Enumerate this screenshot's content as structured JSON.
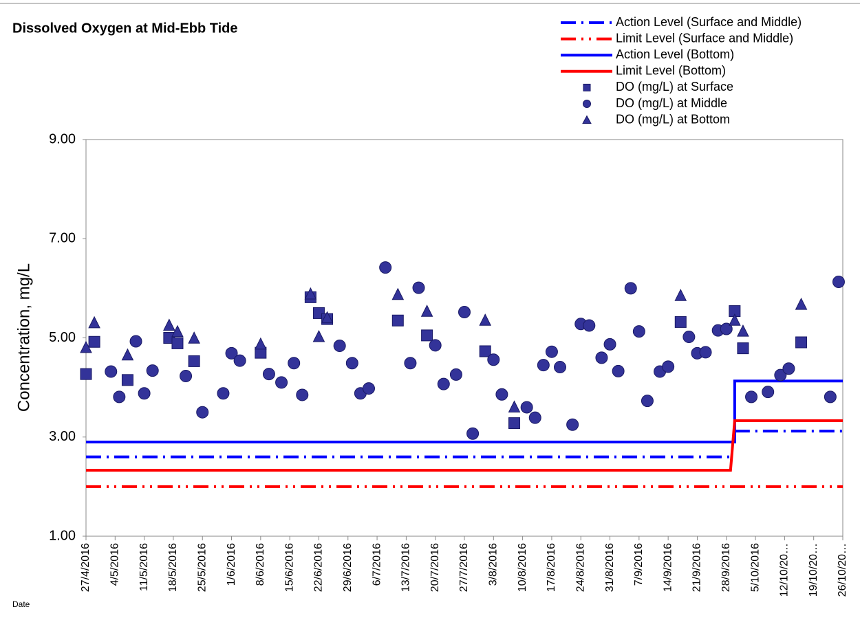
{
  "chart_data": {
    "type": "scatter",
    "title": "Dissolved Oxygen at Mid-Ebb Tide",
    "x_label": "Date",
    "y_label": "Concentration, mg/L",
    "xlim": [
      "2016-04-27",
      "2016-10-26"
    ],
    "xticks": [
      {
        "value": "2016-04-27",
        "label": "27/4/2016"
      },
      {
        "value": "2016-05-04",
        "label": "4/5/2016"
      },
      {
        "value": "2016-05-11",
        "label": "11/5/2016"
      },
      {
        "value": "2016-05-18",
        "label": "18/5/2016"
      },
      {
        "value": "2016-05-25",
        "label": "25/5/2016"
      },
      {
        "value": "2016-06-01",
        "label": "1/6/2016"
      },
      {
        "value": "2016-06-08",
        "label": "8/6/2016"
      },
      {
        "value": "2016-06-15",
        "label": "15/6/2016"
      },
      {
        "value": "2016-06-22",
        "label": "22/6/2016"
      },
      {
        "value": "2016-06-29",
        "label": "29/6/2016"
      },
      {
        "value": "2016-07-06",
        "label": "6/7/2016"
      },
      {
        "value": "2016-07-13",
        "label": "13/7/2016"
      },
      {
        "value": "2016-07-20",
        "label": "20/7/2016"
      },
      {
        "value": "2016-07-27",
        "label": "27/7/2016"
      },
      {
        "value": "2016-08-03",
        "label": "3/8/2016"
      },
      {
        "value": "2016-08-10",
        "label": "10/8/2016"
      },
      {
        "value": "2016-08-17",
        "label": "17/8/2016"
      },
      {
        "value": "2016-08-24",
        "label": "24/8/2016"
      },
      {
        "value": "2016-08-31",
        "label": "31/8/2016"
      },
      {
        "value": "2016-09-07",
        "label": "7/9/2016"
      },
      {
        "value": "2016-09-14",
        "label": "14/9/2016"
      },
      {
        "value": "2016-09-21",
        "label": "21/9/2016"
      },
      {
        "value": "2016-09-28",
        "label": "28/9/2016"
      },
      {
        "value": "2016-10-05",
        "label": "5/10/2016"
      },
      {
        "value": "2016-10-12",
        "label": "12/10/20…"
      },
      {
        "value": "2016-10-19",
        "label": "19/10/20…"
      },
      {
        "value": "2016-10-26",
        "label": "26/10/20…"
      }
    ],
    "ylim": [
      1,
      9
    ],
    "yticks": [
      {
        "value": 1,
        "label": "1.00"
      },
      {
        "value": 3,
        "label": "3.00"
      },
      {
        "value": 5,
        "label": "5.00"
      },
      {
        "value": 7,
        "label": "7.00"
      },
      {
        "value": 9,
        "label": "9.00"
      }
    ],
    "legend": "top-right",
    "series": [
      {
        "name": "Action Level (Surface and Middle)",
        "type": "line",
        "linestyle": "dash-dot",
        "color": "#0000ff",
        "x": [
          "2016-04-27",
          "2016-09-29",
          "2016-09-29",
          "2016-09-30",
          "2016-10-26"
        ],
        "values": [
          2.6,
          2.6,
          null,
          3.12,
          3.12
        ]
      },
      {
        "name": "Limit Level (Surface and Middle)",
        "type": "line",
        "linestyle": "dash-dot-dot",
        "color": "#ff0000",
        "x": [
          "2016-04-27",
          "2016-10-26"
        ],
        "values": [
          2.0,
          2.0
        ]
      },
      {
        "name": "Action Level (Bottom)",
        "type": "line",
        "linestyle": "solid",
        "color": "#0000ff",
        "x": [
          "2016-04-27",
          "2016-09-30",
          "2016-09-30",
          "2016-10-26"
        ],
        "values": [
          2.9,
          2.9,
          4.13,
          4.13
        ]
      },
      {
        "name": "Limit Level (Bottom)",
        "type": "line",
        "linestyle": "solid",
        "color": "#ff0000",
        "x": [
          "2016-04-27",
          "2016-09-29",
          "2016-09-30",
          "2016-10-26"
        ],
        "values": [
          2.33,
          2.33,
          3.33,
          3.33
        ]
      },
      {
        "name": "DO (mg/L) at Surface",
        "type": "scatter",
        "marker": "square",
        "color": "#333399",
        "x": [
          "2016-04-27",
          "2016-04-29",
          "2016-05-07",
          "2016-05-17",
          "2016-05-19",
          "2016-05-23",
          "2016-06-08",
          "2016-06-20",
          "2016-06-22",
          "2016-06-24",
          "2016-07-11",
          "2016-07-18",
          "2016-08-01",
          "2016-08-08",
          "2016-09-17",
          "2016-09-30",
          "2016-10-02",
          "2016-10-16"
        ],
        "values": [
          4.27,
          4.92,
          4.15,
          5.0,
          4.89,
          4.53,
          4.7,
          5.82,
          5.5,
          5.38,
          5.35,
          5.05,
          4.73,
          3.28,
          5.32,
          5.54,
          4.79,
          4.91
        ]
      },
      {
        "name": "DO (mg/L) at Middle",
        "type": "scatter",
        "marker": "circle",
        "color": "#333399",
        "x": [
          "2016-05-03",
          "2016-05-05",
          "2016-05-09",
          "2016-05-11",
          "2016-05-13",
          "2016-05-21",
          "2016-05-25",
          "2016-05-30",
          "2016-06-01",
          "2016-06-03",
          "2016-06-10",
          "2016-06-13",
          "2016-06-16",
          "2016-06-18",
          "2016-06-27",
          "2016-06-30",
          "2016-07-02",
          "2016-07-04",
          "2016-07-08",
          "2016-07-14",
          "2016-07-16",
          "2016-07-20",
          "2016-07-22",
          "2016-07-25",
          "2016-07-27",
          "2016-07-29",
          "2016-08-03",
          "2016-08-05",
          "2016-08-11",
          "2016-08-13",
          "2016-08-15",
          "2016-08-17",
          "2016-08-19",
          "2016-08-22",
          "2016-08-24",
          "2016-08-26",
          "2016-08-29",
          "2016-08-31",
          "2016-09-02",
          "2016-09-05",
          "2016-09-07",
          "2016-09-09",
          "2016-09-12",
          "2016-09-14",
          "2016-09-19",
          "2016-09-21",
          "2016-09-23",
          "2016-09-26",
          "2016-09-28",
          "2016-10-04",
          "2016-10-08",
          "2016-10-11",
          "2016-10-13",
          "2016-10-23",
          "2016-10-25"
        ],
        "values": [
          4.32,
          3.81,
          4.93,
          3.88,
          4.34,
          4.23,
          3.5,
          3.88,
          4.69,
          4.54,
          4.27,
          4.1,
          4.49,
          3.85,
          4.84,
          4.49,
          3.88,
          3.98,
          6.42,
          4.49,
          6.01,
          4.85,
          4.07,
          4.26,
          5.52,
          3.07,
          4.56,
          3.86,
          3.6,
          3.39,
          4.45,
          4.72,
          4.41,
          3.25,
          5.28,
          5.25,
          4.6,
          4.87,
          4.33,
          6.0,
          5.13,
          3.73,
          4.32,
          4.42,
          5.02,
          4.69,
          4.71,
          5.15,
          5.18,
          3.81,
          3.91,
          4.25,
          4.38,
          3.81,
          6.13
        ]
      },
      {
        "name": "DO (mg/L) at Bottom",
        "type": "scatter",
        "marker": "triangle",
        "color": "#333399",
        "x": [
          "2016-04-27",
          "2016-04-29",
          "2016-05-07",
          "2016-05-17",
          "2016-05-19",
          "2016-05-23",
          "2016-06-08",
          "2016-06-20",
          "2016-06-22",
          "2016-06-24",
          "2016-07-11",
          "2016-07-18",
          "2016-08-01",
          "2016-08-08",
          "2016-09-17",
          "2016-09-30",
          "2016-10-02",
          "2016-10-16"
        ],
        "values": [
          4.8,
          5.3,
          4.65,
          5.25,
          5.12,
          4.99,
          4.87,
          5.88,
          5.02,
          5.4,
          5.87,
          5.53,
          5.35,
          3.6,
          5.85,
          5.35,
          5.13,
          5.67
        ]
      }
    ]
  }
}
